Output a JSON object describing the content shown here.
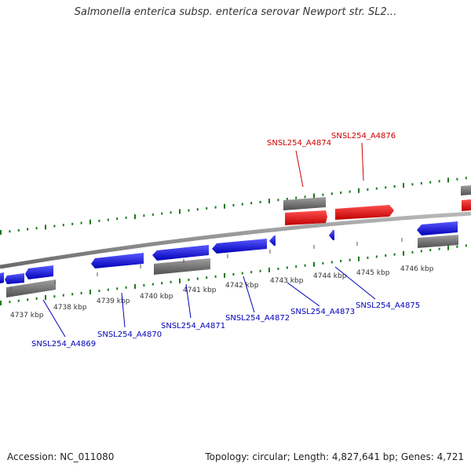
{
  "title": "Salmonella enterica subsp. enterica serovar Newport str. SL2...",
  "footer": {
    "accession": "Accession: NC_011080",
    "summary": "Topology: circular; Length: 4,827,641 bp; Genes: 4,721"
  },
  "colors": {
    "forward_gene": "#ee0000",
    "reverse_gene": "#1010e0",
    "rna": "#707070",
    "backbone": "#8a8a8a",
    "gc_ticks": "#1a7a1a",
    "label_forward": "#cc0000",
    "label_reverse": "#0000bb"
  },
  "kbp_ticks": [
    {
      "label": "4737 kbp"
    },
    {
      "label": "4738 kbp"
    },
    {
      "label": "4739 kbp"
    },
    {
      "label": "4740 kbp"
    },
    {
      "label": "4741 kbp"
    },
    {
      "label": "4742 kbp"
    },
    {
      "label": "4743 kbp"
    },
    {
      "label": "4744 kbp"
    },
    {
      "label": "4745 kbp"
    },
    {
      "label": "4746 kbp"
    }
  ],
  "gene_labels": [
    {
      "label": "SNSL254_A4874",
      "strand": "forward"
    },
    {
      "label": "SNSL254_A4876",
      "strand": "forward"
    },
    {
      "label": "SNSL254_A4869",
      "strand": "reverse"
    },
    {
      "label": "SNSL254_A4870",
      "strand": "reverse"
    },
    {
      "label": "SNSL254_A4871",
      "strand": "reverse"
    },
    {
      "label": "SNSL254_A4872",
      "strand": "reverse"
    },
    {
      "label": "SNSL254_A4873",
      "strand": "reverse"
    },
    {
      "label": "SNSL254_A4875",
      "strand": "reverse"
    }
  ]
}
